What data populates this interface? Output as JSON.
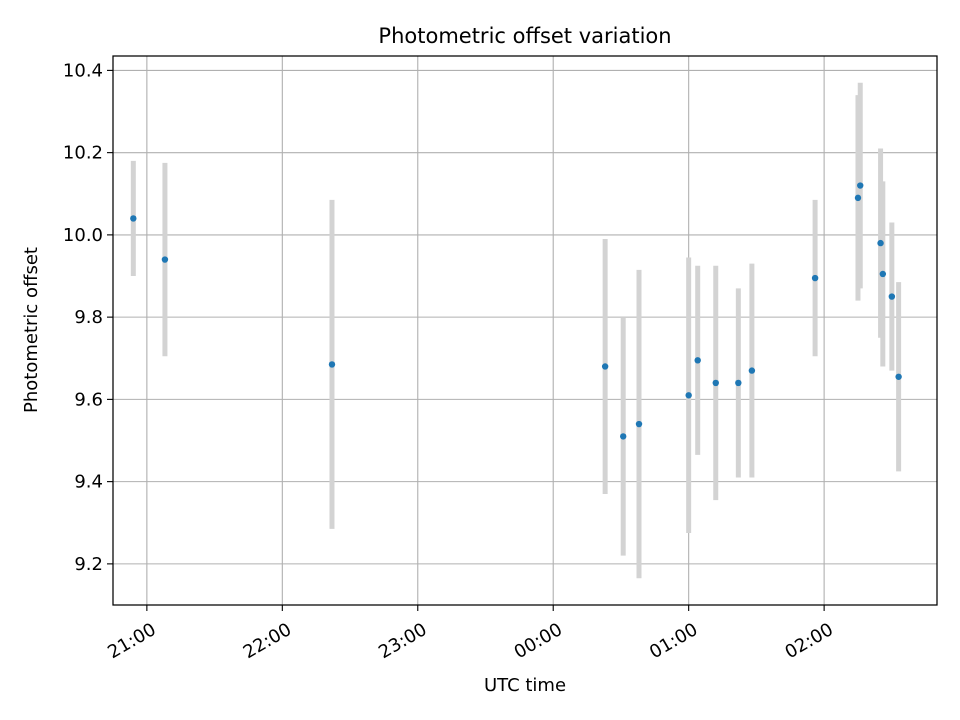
{
  "chart_data": {
    "type": "scatter",
    "title": "Photometric offset variation",
    "xlabel": "UTC time",
    "ylabel": "Photometric offset",
    "x_axis_kind": "time",
    "xlim": [
      "20:45",
      "02:50"
    ],
    "ylim": [
      9.1,
      10.435
    ],
    "grid": true,
    "x_ticks": [
      "21:00",
      "22:00",
      "23:00",
      "00:00",
      "01:00",
      "02:00"
    ],
    "y_ticks": [
      9.2,
      9.4,
      9.6,
      9.8,
      10.0,
      10.2,
      10.4
    ],
    "y_tick_labels": [
      "9.2",
      "9.4",
      "9.6",
      "9.8",
      "10.0",
      "10.2",
      "10.4"
    ],
    "series": [
      {
        "marker_color": "#1f77b4",
        "error_color": "#d3d3d3",
        "x": [
          "20:54",
          "21:08",
          "22:22",
          "00:23",
          "00:31",
          "00:38",
          "01:00",
          "01:04",
          "01:12",
          "01:22",
          "01:28",
          "01:56",
          "02:15",
          "02:16",
          "02:25",
          "02:26",
          "02:30",
          "02:33"
        ],
        "y": [
          10.04,
          9.94,
          9.685,
          9.68,
          9.51,
          9.54,
          9.61,
          9.695,
          9.64,
          9.64,
          9.67,
          9.895,
          10.09,
          10.12,
          9.98,
          9.905,
          9.85,
          9.655
        ],
        "y_err": [
          0.14,
          0.235,
          0.4,
          0.31,
          0.29,
          0.375,
          0.335,
          0.23,
          0.285,
          0.23,
          0.26,
          0.19,
          0.25,
          0.25,
          0.23,
          0.225,
          0.18,
          0.23
        ]
      }
    ]
  }
}
